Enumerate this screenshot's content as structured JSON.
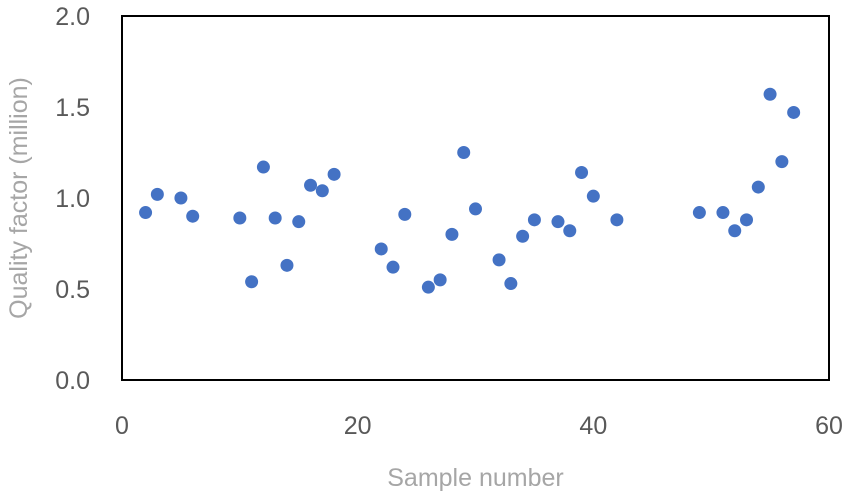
{
  "chart_data": {
    "type": "scatter",
    "title": "",
    "xlabel": "Sample number",
    "ylabel": "Quality factor (million)",
    "xlim": [
      0,
      60
    ],
    "ylim": [
      0.0,
      2.0
    ],
    "x_ticks": [
      "0",
      "20",
      "40",
      "60"
    ],
    "y_ticks": [
      "0.0",
      "0.5",
      "1.0",
      "1.5",
      "2.0"
    ],
    "grid": false,
    "legend": "none",
    "marker_color": "#4472c4",
    "series": [
      {
        "x": [
          2,
          3,
          5,
          6,
          10,
          11,
          12,
          13,
          14,
          15,
          16,
          17,
          18,
          22,
          23,
          24,
          26,
          27,
          28,
          29,
          30,
          32,
          33,
          34,
          35,
          37,
          38,
          39,
          40,
          42,
          49,
          51,
          52,
          53,
          54,
          55,
          56,
          57
        ],
        "y": [
          0.92,
          1.02,
          1.0,
          0.9,
          0.89,
          0.54,
          1.17,
          0.89,
          0.63,
          0.87,
          1.07,
          1.04,
          1.13,
          0.72,
          0.62,
          0.91,
          0.51,
          0.55,
          0.8,
          1.25,
          0.94,
          0.66,
          0.53,
          0.79,
          0.88,
          0.87,
          0.82,
          1.14,
          1.01,
          0.88,
          0.92,
          0.92,
          0.82,
          0.88,
          1.06,
          1.57,
          1.2,
          1.47
        ]
      }
    ]
  }
}
